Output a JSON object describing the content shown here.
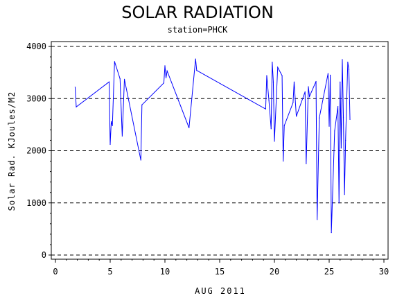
{
  "chart_data": {
    "type": "line",
    "title": "SOLAR RADIATION",
    "subtitle": "station=PHCK",
    "xlabel": "AUG 2011",
    "ylabel": "Solar Rad. KJoules/M2",
    "xlim": [
      0,
      30
    ],
    "ylim": [
      0,
      4000
    ],
    "xticks": [
      "0",
      "5",
      "10",
      "15",
      "20",
      "25",
      "30"
    ],
    "yticks": [
      "0",
      "1000",
      "2000",
      "3000",
      "4000"
    ],
    "grid": "horizontal dashed",
    "colors": {
      "series": "#0000ff",
      "axis": "#000000"
    },
    "series": [
      {
        "values": [
          [
            1.8,
            3220
          ],
          [
            1.9,
            2840
          ],
          [
            4.9,
            3320
          ],
          [
            5.0,
            2120
          ],
          [
            5.1,
            2560
          ],
          [
            5.2,
            2480
          ],
          [
            5.4,
            3710
          ],
          [
            5.9,
            3380
          ],
          [
            6.1,
            2280
          ],
          [
            6.3,
            3370
          ],
          [
            7.8,
            1820
          ],
          [
            7.9,
            2880
          ],
          [
            9.9,
            3300
          ],
          [
            10.0,
            3630
          ],
          [
            10.1,
            3400
          ],
          [
            10.2,
            3530
          ],
          [
            12.2,
            2440
          ],
          [
            12.8,
            3760
          ],
          [
            12.9,
            3540
          ],
          [
            19.2,
            2800
          ],
          [
            19.3,
            3440
          ],
          [
            19.5,
            2960
          ],
          [
            19.7,
            2420
          ],
          [
            19.8,
            3700
          ],
          [
            19.9,
            3320
          ],
          [
            20.0,
            2180
          ],
          [
            20.3,
            3600
          ],
          [
            20.7,
            3440
          ],
          [
            20.8,
            1800
          ],
          [
            20.9,
            2480
          ],
          [
            21.7,
            2920
          ],
          [
            21.8,
            3320
          ],
          [
            22.0,
            2660
          ],
          [
            22.8,
            3130
          ],
          [
            22.9,
            1750
          ],
          [
            23.1,
            3230
          ],
          [
            23.2,
            3040
          ],
          [
            23.8,
            3330
          ],
          [
            23.9,
            680
          ],
          [
            24.1,
            2630
          ],
          [
            24.9,
            3480
          ],
          [
            25.0,
            2470
          ],
          [
            25.1,
            3450
          ],
          [
            25.2,
            430
          ],
          [
            25.5,
            2380
          ],
          [
            25.8,
            2850
          ],
          [
            25.9,
            1000
          ],
          [
            26.0,
            3320
          ],
          [
            26.1,
            2050
          ],
          [
            26.2,
            3750
          ],
          [
            26.3,
            2640
          ],
          [
            26.4,
            1160
          ],
          [
            26.5,
            2200
          ],
          [
            26.7,
            3700
          ],
          [
            26.8,
            3560
          ],
          [
            26.9,
            2600
          ]
        ]
      }
    ]
  }
}
